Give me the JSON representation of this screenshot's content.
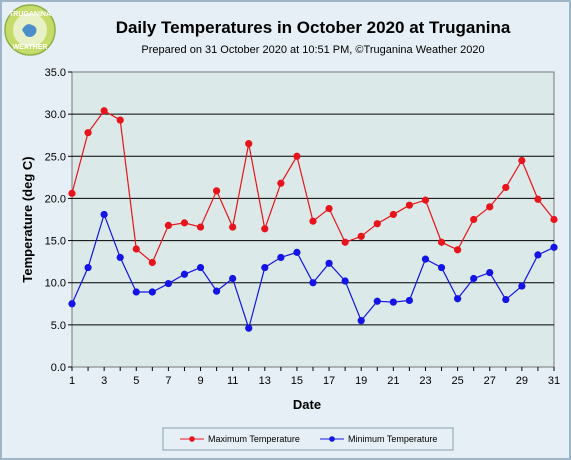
{
  "logo": {
    "line1": "TRUGANINA",
    "line2": "WEATHER"
  },
  "chart_data": {
    "type": "line",
    "title": "Daily Temperatures in October 2020 at Truganina",
    "subtitle": "Prepared on 31 October 2020 at 10:51 PM,  ©Truganina Weather 2020",
    "xlabel": "Date",
    "ylabel": "Temperature (deg C)",
    "xlim": [
      1,
      31
    ],
    "ylim": [
      0,
      35
    ],
    "x_ticks": [
      1,
      3,
      5,
      7,
      9,
      11,
      13,
      15,
      17,
      19,
      21,
      23,
      25,
      27,
      29,
      31
    ],
    "y_ticks": [
      "0.0",
      "5.0",
      "10.0",
      "15.0",
      "20.0",
      "25.0",
      "30.0",
      "35.0"
    ],
    "grid": "horizontal",
    "legend_position": "bottom",
    "x": [
      1,
      2,
      3,
      4,
      5,
      6,
      7,
      8,
      9,
      10,
      11,
      12,
      13,
      14,
      15,
      16,
      17,
      18,
      19,
      20,
      21,
      22,
      23,
      24,
      25,
      26,
      27,
      28,
      29,
      30,
      31
    ],
    "series": [
      {
        "name": "Maximum Temperature",
        "color": "#e8141b",
        "values": [
          20.6,
          27.8,
          30.4,
          29.3,
          14.0,
          12.4,
          16.8,
          17.1,
          16.6,
          20.9,
          16.6,
          26.5,
          16.4,
          21.8,
          25.0,
          17.3,
          18.8,
          14.8,
          15.5,
          17.0,
          18.1,
          19.2,
          19.8,
          14.8,
          13.9,
          17.5,
          19.0,
          21.3,
          24.5,
          19.9,
          17.5
        ]
      },
      {
        "name": "Minimum Temperature",
        "color": "#1414e6",
        "values": [
          7.5,
          11.8,
          18.1,
          13.0,
          8.9,
          8.9,
          9.9,
          11.0,
          11.8,
          9.0,
          10.5,
          4.6,
          11.8,
          13.0,
          13.6,
          10.0,
          12.3,
          10.2,
          5.5,
          7.8,
          7.7,
          7.9,
          12.8,
          11.8,
          8.1,
          10.5,
          11.2,
          8.0,
          9.6,
          13.3,
          14.2
        ]
      }
    ],
    "colors": {
      "plot_background": "#dce9e9",
      "frame_background": "#e6eff5"
    }
  }
}
